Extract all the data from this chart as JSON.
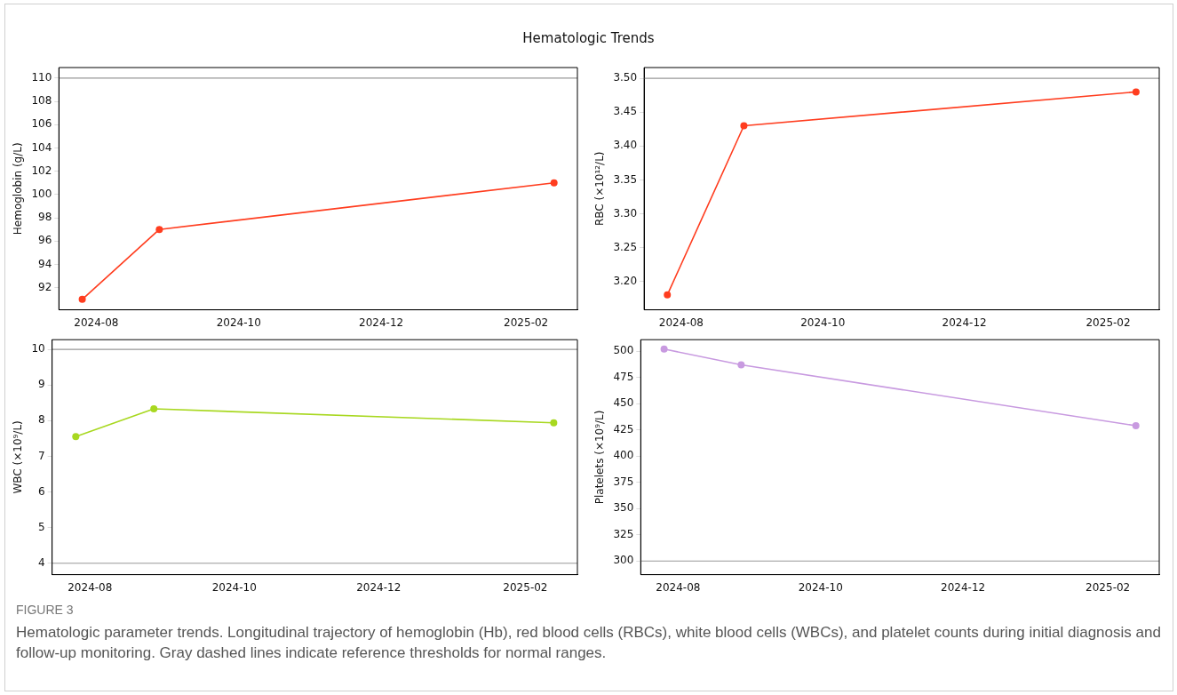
{
  "chart_data": [
    {
      "type": "line",
      "title": "Hematologic Trends",
      "ylabel": "Hemoglobin (g/L)",
      "x": [
        "2024-07-26",
        "2024-08-28",
        "2025-02-13"
      ],
      "series": [
        {
          "color": "#ff3d1f",
          "values": [
            91,
            97,
            101
          ]
        }
      ],
      "xlim": [
        "2024-07-16",
        "2025-02-23"
      ],
      "xticks": [
        {
          "value": "2024-08-01",
          "label": "2024-08"
        },
        {
          "value": "2024-10-01",
          "label": "2024-10"
        },
        {
          "value": "2024-12-01",
          "label": "2024-12"
        },
        {
          "value": "2025-02-01",
          "label": "2025-02"
        }
      ],
      "ylim": [
        90.1,
        110.9
      ],
      "yticks": [
        92,
        94,
        96,
        98,
        100,
        102,
        104,
        106,
        108,
        110
      ],
      "ref_lines": [
        {
          "axis": "y",
          "value": 110,
          "label": null,
          "color": "#999999",
          "line_style": "solid"
        }
      ],
      "marker": "circle",
      "line_style": "solid",
      "grid": false,
      "legend": false
    },
    {
      "type": "line",
      "ylabel": "RBC (×10¹²/L)",
      "x": [
        "2024-07-26",
        "2024-08-28",
        "2025-02-13"
      ],
      "series": [
        {
          "color": "#ff3d1f",
          "values": [
            3.18,
            3.43,
            3.48
          ]
        }
      ],
      "xlim": [
        "2024-07-16",
        "2025-02-23"
      ],
      "xticks": [
        {
          "value": "2024-08-01",
          "label": "2024-08"
        },
        {
          "value": "2024-10-01",
          "label": "2024-10"
        },
        {
          "value": "2024-12-01",
          "label": "2024-12"
        },
        {
          "value": "2025-02-01",
          "label": "2025-02"
        }
      ],
      "ylim": [
        3.158,
        3.516
      ],
      "yticks": [
        {
          "value": 3.2,
          "label": "3.20"
        },
        {
          "value": 3.25,
          "label": "3.25"
        },
        {
          "value": 3.3,
          "label": "3.30"
        },
        {
          "value": 3.35,
          "label": "3.35"
        },
        {
          "value": 3.4,
          "label": "3.40"
        },
        {
          "value": 3.45,
          "label": "3.45"
        },
        {
          "value": 3.5,
          "label": "3.50"
        }
      ],
      "ref_lines": [
        {
          "axis": "y",
          "value": 3.5,
          "label": null,
          "color": "#999999",
          "line_style": "solid"
        }
      ],
      "marker": "circle",
      "line_style": "solid",
      "grid": false,
      "legend": false
    },
    {
      "type": "line",
      "ylabel": "WBC (×10⁹/L)",
      "x": [
        "2024-07-26",
        "2024-08-28",
        "2025-02-13"
      ],
      "series": [
        {
          "color": "#a8d820",
          "values": [
            7.55,
            8.33,
            7.94
          ]
        }
      ],
      "xlim": [
        "2024-07-16",
        "2025-02-23"
      ],
      "xticks": [
        {
          "value": "2024-08-01",
          "label": "2024-08"
        },
        {
          "value": "2024-10-01",
          "label": "2024-10"
        },
        {
          "value": "2024-12-01",
          "label": "2024-12"
        },
        {
          "value": "2025-02-01",
          "label": "2025-02"
        }
      ],
      "ylim": [
        3.68,
        10.27
      ],
      "yticks": [
        4,
        5,
        6,
        7,
        8,
        9,
        10
      ],
      "ref_lines": [
        {
          "axis": "y",
          "value": 4,
          "label": null,
          "color": "#999999",
          "line_style": "solid"
        },
        {
          "axis": "y",
          "value": 10,
          "label": null,
          "color": "#999999",
          "line_style": "solid"
        }
      ],
      "marker": "circle",
      "line_style": "solid",
      "grid": false,
      "legend": false
    },
    {
      "type": "line",
      "ylabel": "Platelets (×10⁹/L)",
      "x": [
        "2024-07-26",
        "2024-08-28",
        "2025-02-13"
      ],
      "series": [
        {
          "color": "#c89ae0",
          "values": [
            502,
            487,
            429
          ]
        }
      ],
      "xlim": [
        "2024-07-16",
        "2025-02-23"
      ],
      "xticks": [
        {
          "value": "2024-08-01",
          "label": "2024-08"
        },
        {
          "value": "2024-10-01",
          "label": "2024-10"
        },
        {
          "value": "2024-12-01",
          "label": "2024-12"
        },
        {
          "value": "2025-02-01",
          "label": "2025-02"
        }
      ],
      "ylim": [
        287,
        511
      ],
      "yticks": [
        300,
        325,
        350,
        375,
        400,
        425,
        450,
        475,
        500
      ],
      "ref_lines": [
        {
          "axis": "y",
          "value": 300,
          "label": null,
          "color": "#999999",
          "line_style": "solid"
        }
      ],
      "marker": "circle",
      "line_style": "solid",
      "grid": false,
      "legend": false,
      "annotations": [
        "FIGURE 3",
        "Hematologic parameter trends. Longitudinal trajectory of hemoglobin (Hb), red blood cells (RBCs), white blood cells (WBCs), and platelet counts during initial diagnosis and follow-up monitoring. Gray dashed lines indicate reference thresholds for normal ranges."
      ]
    }
  ]
}
